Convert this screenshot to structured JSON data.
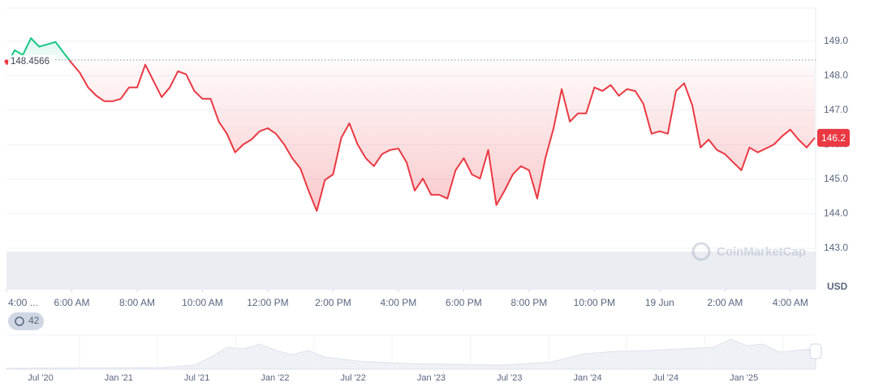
{
  "chart_data": {
    "type": "line",
    "x": [
      0,
      0.25,
      0.5,
      0.75,
      1,
      1.25,
      1.5,
      1.75,
      2,
      2.25,
      2.5,
      2.75,
      3,
      3.25,
      3.5,
      3.75,
      4,
      4.25,
      4.5,
      4.75,
      5,
      5.25,
      5.5,
      5.75,
      6,
      6.25,
      6.5,
      6.75,
      7,
      7.25,
      7.5,
      7.75,
      8,
      8.25,
      8.5,
      8.75,
      9,
      9.25,
      9.5,
      9.75,
      10,
      10.25,
      10.5,
      10.75,
      11,
      11.25,
      11.5,
      11.75,
      12,
      12.25,
      12.5,
      12.75,
      13,
      13.25,
      13.5,
      13.75,
      14,
      14.25,
      14.5,
      14.75,
      15,
      15.25,
      15.5,
      15.75,
      16,
      16.25,
      16.5,
      16.75,
      17,
      17.25,
      17.5,
      17.75,
      18,
      18.25,
      18.5,
      18.75,
      19,
      19.25,
      19.5,
      19.75,
      20,
      20.25,
      20.5,
      20.75,
      21,
      21.25,
      21.5,
      21.75,
      22,
      22.25,
      22.5,
      22.75,
      23,
      23.25,
      23.5,
      23.75,
      24,
      24.25,
      24.5,
      24.75
    ],
    "values": [
      148.32,
      148.74,
      148.6,
      149.09,
      148.84,
      148.91,
      148.98,
      148.67,
      148.36,
      148.08,
      147.66,
      147.42,
      147.26,
      147.26,
      147.33,
      147.66,
      147.66,
      148.32,
      147.85,
      147.38,
      147.66,
      148.13,
      148.04,
      147.56,
      147.33,
      147.33,
      146.67,
      146.32,
      145.78,
      146.01,
      146.15,
      146.39,
      146.48,
      146.32,
      146.01,
      145.61,
      145.31,
      144.67,
      144.08,
      144.98,
      145.14,
      146.2,
      146.62,
      146.01,
      145.61,
      145.38,
      145.73,
      145.85,
      145.89,
      145.49,
      144.67,
      145.02,
      144.55,
      144.55,
      144.44,
      145.26,
      145.61,
      145.14,
      145.02,
      145.85,
      144.25,
      144.67,
      145.14,
      145.38,
      145.26,
      144.44,
      145.61,
      146.48,
      147.61,
      146.67,
      146.91,
      146.91,
      147.66,
      147.56,
      147.73,
      147.42,
      147.61,
      147.56,
      147.19,
      146.32,
      146.39,
      146.32,
      147.56,
      147.78,
      147.14,
      145.92,
      146.15,
      145.85,
      145.73,
      145.49,
      145.26,
      145.92,
      145.78,
      145.89,
      146.01,
      146.25,
      146.44,
      146.15,
      145.92,
      146.2
    ],
    "colors": {
      "up": "#16c784",
      "down": "#ea3943"
    },
    "reference_value": 148.4566,
    "current_value": 146.2,
    "xlim": [
      0,
      24.75
    ],
    "xticks": [
      {
        "value": 0,
        "label": "4:00 ..."
      },
      {
        "value": 2,
        "label": "6:00 AM"
      },
      {
        "value": 4,
        "label": "8:00 AM"
      },
      {
        "value": 6,
        "label": "10:00 AM"
      },
      {
        "value": 8,
        "label": "12:00 PM"
      },
      {
        "value": 10,
        "label": "2:00 PM"
      },
      {
        "value": 12,
        "label": "4:00 PM"
      },
      {
        "value": 14,
        "label": "6:00 PM"
      },
      {
        "value": 16,
        "label": "8:00 PM"
      },
      {
        "value": 18,
        "label": "10:00 PM"
      },
      {
        "value": 20,
        "label": "19 Jun"
      },
      {
        "value": 22,
        "label": "2:00 AM"
      },
      {
        "value": 24,
        "label": "4:00 AM"
      }
    ],
    "ylim": [
      141.8,
      149.96
    ],
    "yticks": [
      {
        "value": 143,
        "label": "143.0"
      },
      {
        "value": 144,
        "label": "144.0"
      },
      {
        "value": 145,
        "label": "145.0"
      },
      {
        "value": 146,
        "label": "146.0"
      },
      {
        "value": 147,
        "label": "147.0"
      },
      {
        "value": 148,
        "label": "148.0"
      },
      {
        "value": 149,
        "label": "149.0"
      }
    ],
    "grid": true,
    "y_unit": "USD",
    "watermark": "CoinMarketCap",
    "badge": "42",
    "navigator_labels": [
      "Jul '20",
      "Jan '21",
      "Jul '21",
      "Jan '22",
      "Jul '22",
      "Jan '23",
      "Jul '23",
      "Jan '24",
      "Jul '24",
      "Jan '25"
    ]
  }
}
